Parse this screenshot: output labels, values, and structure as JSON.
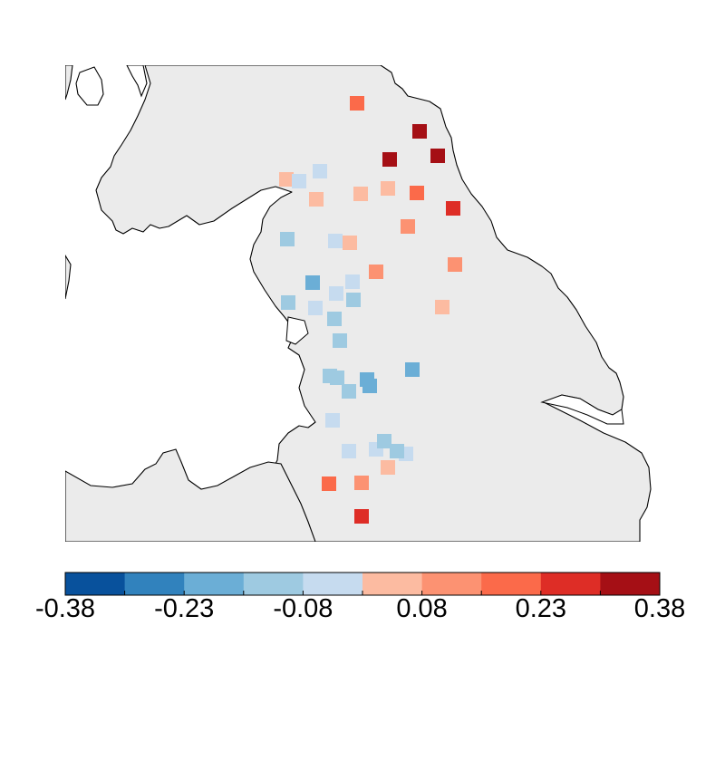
{
  "map": {
    "land_color": "#ebebeb",
    "coast_color": "#000000",
    "sea_color": "#ffffff"
  },
  "colorbar": {
    "bins": [
      "#08519c",
      "#3182bd",
      "#6baed6",
      "#9ecae1",
      "#c6dbef",
      "#fcbba1",
      "#fc9272",
      "#fb6a4a",
      "#de2d26",
      "#a50f15"
    ],
    "range": [
      -0.38,
      0.38
    ],
    "tick_labels": [
      "-0.38",
      "-0.23",
      "-0.08",
      "0.08",
      "0.23",
      "0.38"
    ]
  },
  "stations": [
    {
      "value": 0.2
    },
    {
      "value": 0.35
    },
    {
      "value": 0.34
    },
    {
      "value": 0.36
    },
    {
      "value": 0.05
    },
    {
      "value": 0.05
    },
    {
      "value": 0.2
    },
    {
      "value": 0.05
    },
    {
      "value": 0.29
    },
    {
      "value": 0.13
    },
    {
      "value": 0.13
    },
    {
      "value": 0.05
    },
    {
      "value": 0.13
    },
    {
      "value": 0.05
    },
    {
      "value": 0.05
    },
    {
      "value": -0.05
    },
    {
      "value": -0.05
    },
    {
      "value": -0.05
    },
    {
      "value": -0.12
    },
    {
      "value": -0.05
    },
    {
      "value": -0.2
    },
    {
      "value": -0.05
    },
    {
      "value": -0.12
    },
    {
      "value": -0.12
    },
    {
      "value": -0.05
    },
    {
      "value": -0.12
    },
    {
      "value": -0.12
    },
    {
      "value": -0.12
    },
    {
      "value": -0.12
    },
    {
      "value": -0.2
    },
    {
      "value": -0.2
    },
    {
      "value": -0.12
    },
    {
      "value": -0.2
    },
    {
      "value": -0.05
    },
    {
      "value": -0.05
    },
    {
      "value": -0.05
    },
    {
      "value": -0.12
    },
    {
      "value": -0.05
    },
    {
      "value": -0.12
    },
    {
      "value": 0.05
    },
    {
      "value": 0.2
    },
    {
      "value": 0.13
    },
    {
      "value": 0.29
    }
  ]
}
